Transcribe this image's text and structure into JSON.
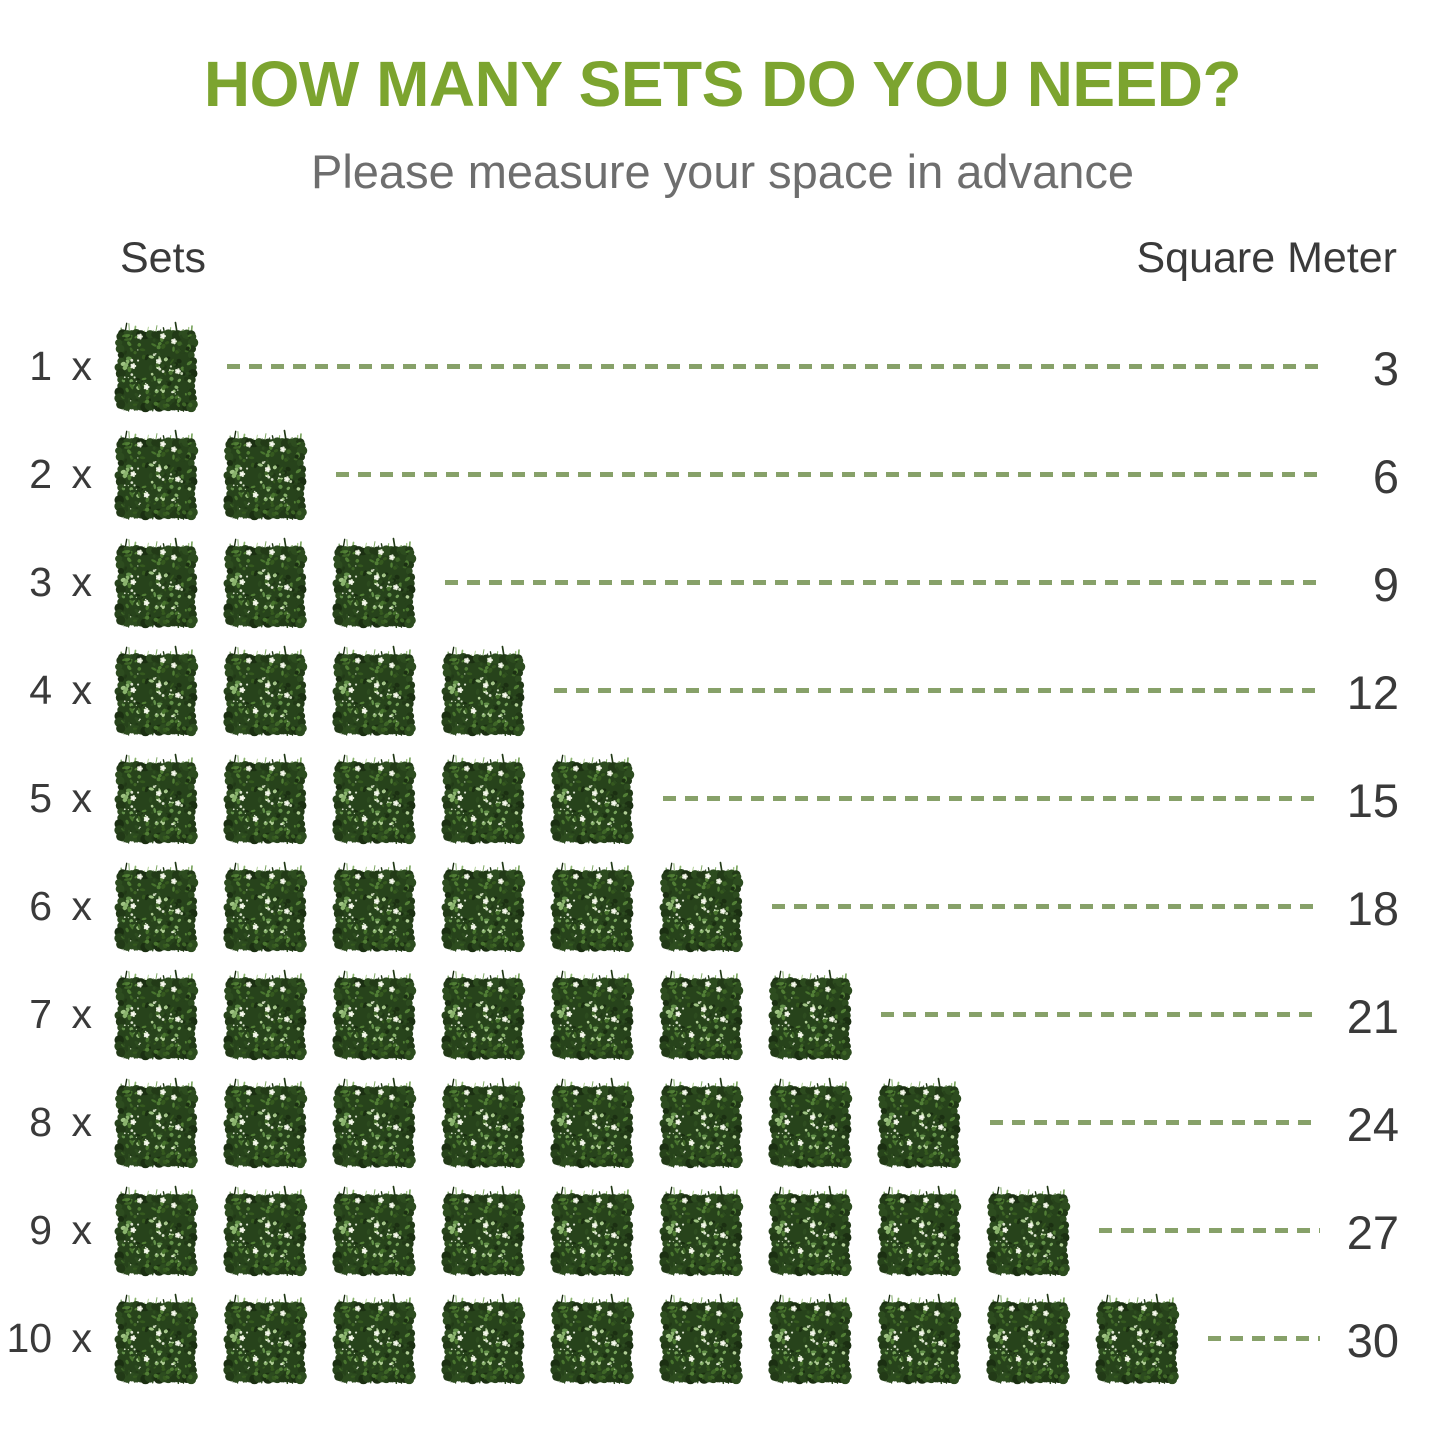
{
  "title": "HOW MANY SETS DO YOU NEED?",
  "subtitle": "Please measure your space in advance",
  "columns": {
    "sets": "Sets",
    "square_meter": "Square Meter"
  },
  "rows": [
    {
      "label": "1 x",
      "sets": 1,
      "square_meters": "3"
    },
    {
      "label": "2 x",
      "sets": 2,
      "square_meters": "6"
    },
    {
      "label": "3 x",
      "sets": 3,
      "square_meters": "9"
    },
    {
      "label": "4 x",
      "sets": 4,
      "square_meters": "12"
    },
    {
      "label": "5 x",
      "sets": 5,
      "square_meters": "15"
    },
    {
      "label": "6 x",
      "sets": 6,
      "square_meters": "18"
    },
    {
      "label": "7 x",
      "sets": 7,
      "square_meters": "21"
    },
    {
      "label": "8 x",
      "sets": 8,
      "square_meters": "24"
    },
    {
      "label": "9 x",
      "sets": 9,
      "square_meters": "27"
    },
    {
      "label": "10 x",
      "sets": 10,
      "square_meters": "30"
    }
  ],
  "icons": {
    "hedge_tile": "hedge-tile-icon"
  },
  "colors": {
    "title_green": "#7ca42f",
    "dash_green": "#87a169",
    "heading_gray": "#3a3a3a",
    "subtitle_gray": "#6e6e6e",
    "hedge_dark_green": "#27431b",
    "hedge_light_green": "#8ab46d",
    "flower_white": "#fdfdf8",
    "background": "#ffffff"
  },
  "chart_data": {
    "type": "table",
    "title": "HOW MANY SETS DO YOU NEED?",
    "subtitle": "Please measure your space in advance",
    "columns": [
      "Sets",
      "Square Meter"
    ],
    "rows": [
      [
        1,
        3
      ],
      [
        2,
        6
      ],
      [
        3,
        9
      ],
      [
        4,
        12
      ],
      [
        5,
        15
      ],
      [
        6,
        18
      ],
      [
        7,
        21
      ],
      [
        8,
        24
      ],
      [
        9,
        27
      ],
      [
        10,
        30
      ]
    ],
    "pictogram": "one hedge-panel icon drawn per set; icon count equals the Sets value",
    "legend_position": "none",
    "grid": false
  }
}
